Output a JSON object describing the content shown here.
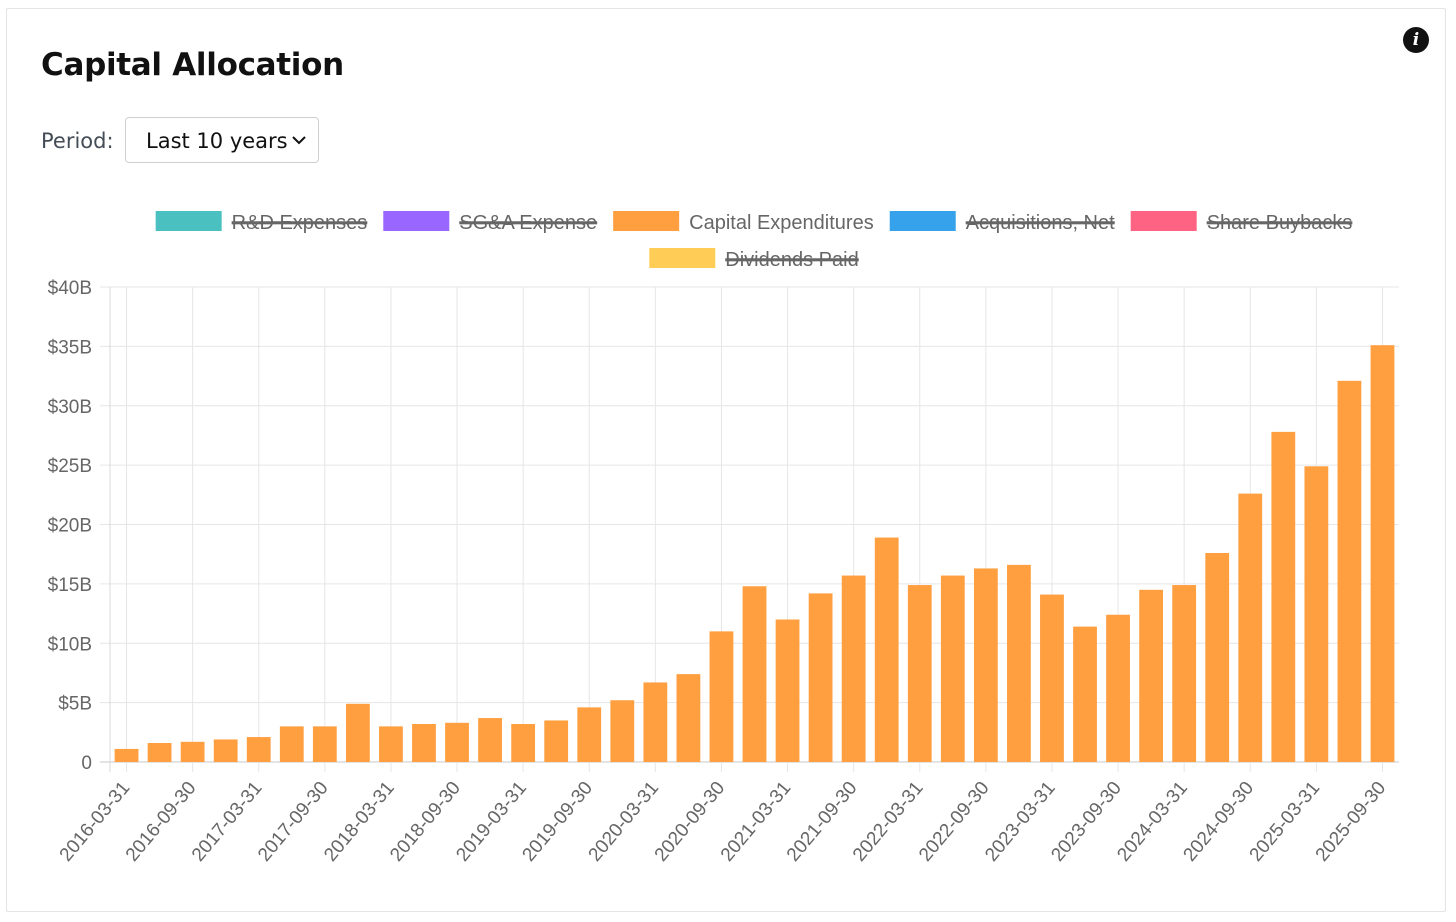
{
  "card": {
    "title": "Capital Allocation",
    "period_label": "Period:",
    "period_value": "Last 10 years"
  },
  "icons": {
    "info": "info-icon",
    "dropdown": "chevron-down-icon"
  },
  "chart_data": {
    "type": "bar",
    "legend": [
      {
        "name": "R&D Expenses",
        "color": "#4bc0c0",
        "hidden": true
      },
      {
        "name": "SG&A Expense",
        "color": "#9966ff",
        "hidden": true
      },
      {
        "name": "Capital Expenditures",
        "color": "#ff9f40",
        "hidden": false
      },
      {
        "name": "Acquisitions, Net",
        "color": "#36a2eb",
        "hidden": true
      },
      {
        "name": "Share Buybacks",
        "color": "#ff6384",
        "hidden": true
      },
      {
        "name": "Dividends Paid",
        "color": "#ffcd56",
        "hidden": true
      }
    ],
    "categories": [
      "2016-03-31",
      "2016-06-30",
      "2016-09-30",
      "2016-12-31",
      "2017-03-31",
      "2017-06-30",
      "2017-09-30",
      "2017-12-31",
      "2018-03-31",
      "2018-06-30",
      "2018-09-30",
      "2018-12-31",
      "2019-03-31",
      "2019-06-30",
      "2019-09-30",
      "2019-12-31",
      "2020-03-31",
      "2020-06-30",
      "2020-09-30",
      "2020-12-31",
      "2021-03-31",
      "2021-06-30",
      "2021-09-30",
      "2021-12-31",
      "2022-03-31",
      "2022-06-30",
      "2022-09-30",
      "2022-12-31",
      "2023-03-31",
      "2023-06-30",
      "2023-09-30",
      "2023-12-31",
      "2024-03-31",
      "2024-06-30",
      "2024-09-30",
      "2024-12-31",
      "2025-03-31",
      "2025-06-30",
      "2025-09-30"
    ],
    "tick_labels": [
      "2016-03-31",
      "2016-09-30",
      "2017-03-31",
      "2017-09-30",
      "2018-03-31",
      "2018-09-30",
      "2019-03-31",
      "2019-09-30",
      "2020-03-31",
      "2020-09-30",
      "2021-03-31",
      "2021-09-30",
      "2022-03-31",
      "2022-09-30",
      "2023-03-31",
      "2023-09-30",
      "2024-03-31",
      "2024-09-30",
      "2025-03-31",
      "2025-09-30"
    ],
    "series": [
      {
        "name": "Capital Expenditures",
        "color": "#ff9f40",
        "values": [
          1.1,
          1.6,
          1.7,
          1.9,
          2.1,
          3.0,
          3.0,
          4.9,
          3.0,
          3.2,
          3.3,
          3.7,
          3.2,
          3.5,
          4.6,
          5.2,
          6.7,
          7.4,
          11.0,
          14.8,
          12.0,
          14.2,
          15.7,
          18.9,
          14.9,
          15.7,
          16.3,
          16.6,
          14.1,
          11.4,
          12.4,
          14.5,
          14.9,
          17.6,
          22.6,
          27.8,
          24.9,
          32.1,
          35.1
        ]
      }
    ],
    "y_ticks": [
      "0",
      "$5B",
      "$10B",
      "$15B",
      "$20B",
      "$25B",
      "$30B",
      "$35B",
      "$40B"
    ],
    "ylim": [
      0,
      40
    ],
    "y_step": 5,
    "grid": true,
    "legend_position": "top"
  }
}
